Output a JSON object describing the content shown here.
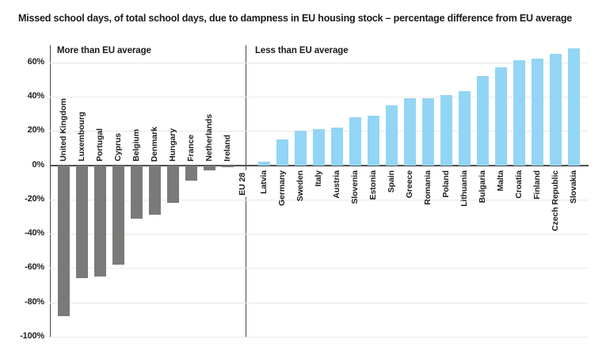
{
  "title": "Missed school days, of total school days, due to dampness in EU housing stock – percentage difference from EU average",
  "chart_data": {
    "type": "bar",
    "title": "Missed school days, of total school days, due to dampness in EU housing stock – percentage difference from EU average",
    "group_headers": [
      "More than EU average",
      "Less than EU average"
    ],
    "xlabel": "",
    "ylabel": "",
    "ylim": [
      -100,
      70
    ],
    "grid": "horizontal",
    "legend": "none",
    "y_ticks": [
      {
        "label": "60%",
        "value": 60
      },
      {
        "label": "40%",
        "value": 40
      },
      {
        "label": "20%",
        "value": 20
      },
      {
        "label": "0%",
        "value": 0
      },
      {
        "label": "-20%",
        "value": -20
      },
      {
        "label": "-40%",
        "value": -40
      },
      {
        "label": "-60%",
        "value": -60
      },
      {
        "label": "-80%",
        "value": -80
      },
      {
        "label": "-100%",
        "value": -100
      }
    ],
    "gridline_values": [
      60,
      40,
      20,
      -20,
      -40,
      -60,
      -80,
      -100
    ],
    "colors": {
      "more": "#7a7a78",
      "less": "#93d5f4"
    },
    "entries": [
      {
        "label": "United Kingdom",
        "value": -88,
        "group": "more"
      },
      {
        "label": "Luxembourg",
        "value": -66,
        "group": "more"
      },
      {
        "label": "Portugal",
        "value": -65,
        "group": "more"
      },
      {
        "label": "Cyprus",
        "value": -58,
        "group": "more"
      },
      {
        "label": "Belgium",
        "value": -31,
        "group": "more"
      },
      {
        "label": "Denmark",
        "value": -29,
        "group": "more"
      },
      {
        "label": "Hungary",
        "value": -22,
        "group": "more"
      },
      {
        "label": "France",
        "value": -9,
        "group": "more"
      },
      {
        "label": "Netherlands",
        "value": -3,
        "group": "more"
      },
      {
        "label": "Ireland",
        "value": -1,
        "group": "more"
      },
      {
        "label": "EU 28",
        "value": 0,
        "group": "eu"
      },
      {
        "label": "Latvia",
        "value": 2,
        "group": "less"
      },
      {
        "label": "Germany",
        "value": 15,
        "group": "less"
      },
      {
        "label": "Sweden",
        "value": 20,
        "group": "less"
      },
      {
        "label": "Italy",
        "value": 21,
        "group": "less"
      },
      {
        "label": "Austria",
        "value": 22,
        "group": "less"
      },
      {
        "label": "Slovenia",
        "value": 28,
        "group": "less"
      },
      {
        "label": "Estonia",
        "value": 29,
        "group": "less"
      },
      {
        "label": "Spain",
        "value": 35,
        "group": "less"
      },
      {
        "label": "Greece",
        "value": 39,
        "group": "less"
      },
      {
        "label": "Romania",
        "value": 39,
        "group": "less"
      },
      {
        "label": "Poland",
        "value": 41,
        "group": "less"
      },
      {
        "label": "Lithuania",
        "value": 43,
        "group": "less"
      },
      {
        "label": "Bulgaria",
        "value": 52,
        "group": "less"
      },
      {
        "label": "Malta",
        "value": 57,
        "group": "less"
      },
      {
        "label": "Croatia",
        "value": 61,
        "group": "less"
      },
      {
        "label": "Finland",
        "value": 62,
        "group": "less"
      },
      {
        "label": "Czech Republic",
        "value": 65,
        "group": "less"
      },
      {
        "label": "Slovakia",
        "value": 68,
        "group": "less"
      }
    ]
  }
}
